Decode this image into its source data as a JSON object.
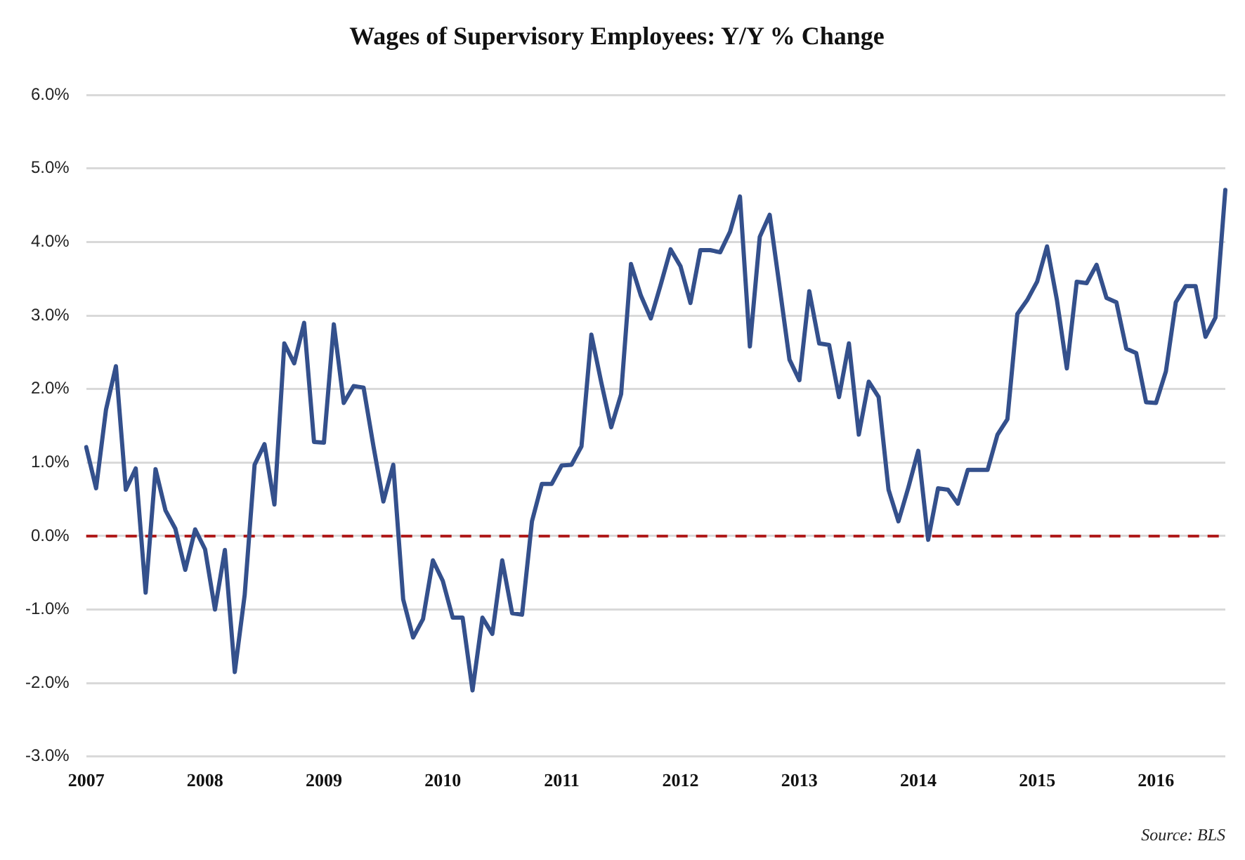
{
  "chart_data": {
    "type": "line",
    "title": "Wages of Supervisory Employees: Y/Y % Change",
    "categories": [
      "2007",
      null,
      null,
      null,
      null,
      null,
      null,
      null,
      null,
      null,
      null,
      null,
      "2008",
      null,
      null,
      null,
      null,
      null,
      null,
      null,
      null,
      null,
      null,
      null,
      "2009",
      null,
      null,
      null,
      null,
      null,
      null,
      null,
      null,
      null,
      null,
      null,
      "2010",
      null,
      null,
      null,
      null,
      null,
      null,
      null,
      null,
      null,
      null,
      null,
      "2011",
      null,
      null,
      null,
      null,
      null,
      null,
      null,
      null,
      null,
      null,
      null,
      "2012",
      null,
      null,
      null,
      null,
      null,
      null,
      null,
      null,
      null,
      null,
      null,
      "2013",
      null,
      null,
      null,
      null,
      null,
      null,
      null,
      null,
      null,
      null,
      null,
      "2014",
      null,
      null,
      null,
      null,
      null,
      null,
      null,
      null,
      null,
      null,
      null,
      "2015",
      null,
      null,
      null,
      null,
      null,
      null,
      null,
      null,
      null,
      null,
      null,
      "2016",
      null,
      null,
      null,
      null,
      null,
      null,
      null
    ],
    "series": [
      {
        "color": "#34508c",
        "values": [
          1.21,
          0.65,
          1.72,
          2.31,
          0.63,
          0.92,
          -0.77,
          0.91,
          0.35,
          0.1,
          -0.46,
          0.09,
          -0.18,
          -1.0,
          -0.19,
          -1.85,
          -0.8,
          0.97,
          1.25,
          0.43,
          2.62,
          2.35,
          2.9,
          1.28,
          1.27,
          2.88,
          1.81,
          2.04,
          2.02,
          1.22,
          0.47,
          0.97,
          -0.86,
          -1.38,
          -1.13,
          -0.33,
          -0.61,
          -1.11,
          -1.11,
          -2.1,
          -1.11,
          -1.33,
          -0.33,
          -1.05,
          -1.07,
          0.2,
          0.71,
          0.71,
          0.96,
          0.97,
          1.22,
          2.74,
          2.09,
          1.48,
          1.93,
          3.7,
          3.27,
          2.96,
          3.42,
          3.9,
          3.67,
          3.17,
          3.89,
          3.89,
          3.86,
          4.14,
          4.62,
          2.58,
          4.07,
          4.37,
          3.39,
          2.4,
          2.12,
          3.33,
          2.62,
          2.6,
          1.89,
          2.62,
          1.38,
          2.1,
          1.89,
          0.63,
          0.2,
          0.66,
          1.16,
          -0.05,
          0.65,
          0.63,
          0.44,
          0.9,
          0.9,
          0.9,
          1.38,
          1.59,
          3.02,
          3.21,
          3.46,
          3.94,
          3.21,
          2.28,
          3.46,
          3.44,
          3.69,
          3.24,
          3.18,
          2.55,
          2.49,
          1.82,
          1.81,
          2.24,
          3.18,
          3.4,
          3.4,
          2.71,
          2.97,
          4.71
        ]
      }
    ],
    "ylim": [
      -3,
      6
    ],
    "yticks": [
      {
        "value": -3,
        "label": "-3.0%"
      },
      {
        "value": -2,
        "label": "-2.0%"
      },
      {
        "value": -1,
        "label": "-1.0%"
      },
      {
        "value": 0,
        "label": "0.0%"
      },
      {
        "value": 1,
        "label": "1.0%"
      },
      {
        "value": 2,
        "label": "2.0%"
      },
      {
        "value": 3,
        "label": "3.0%"
      },
      {
        "value": 4,
        "label": "4.0%"
      },
      {
        "value": 5,
        "label": "5.0%"
      },
      {
        "value": 6,
        "label": "6.0%"
      }
    ],
    "grid": "y",
    "marker": "none",
    "line_style": "solid",
    "ref_lines": [
      {
        "axis": "y",
        "value": 0,
        "color": "#b01c1c",
        "line_style": "dashed"
      }
    ],
    "annotations": [
      "Source: BLS"
    ]
  }
}
